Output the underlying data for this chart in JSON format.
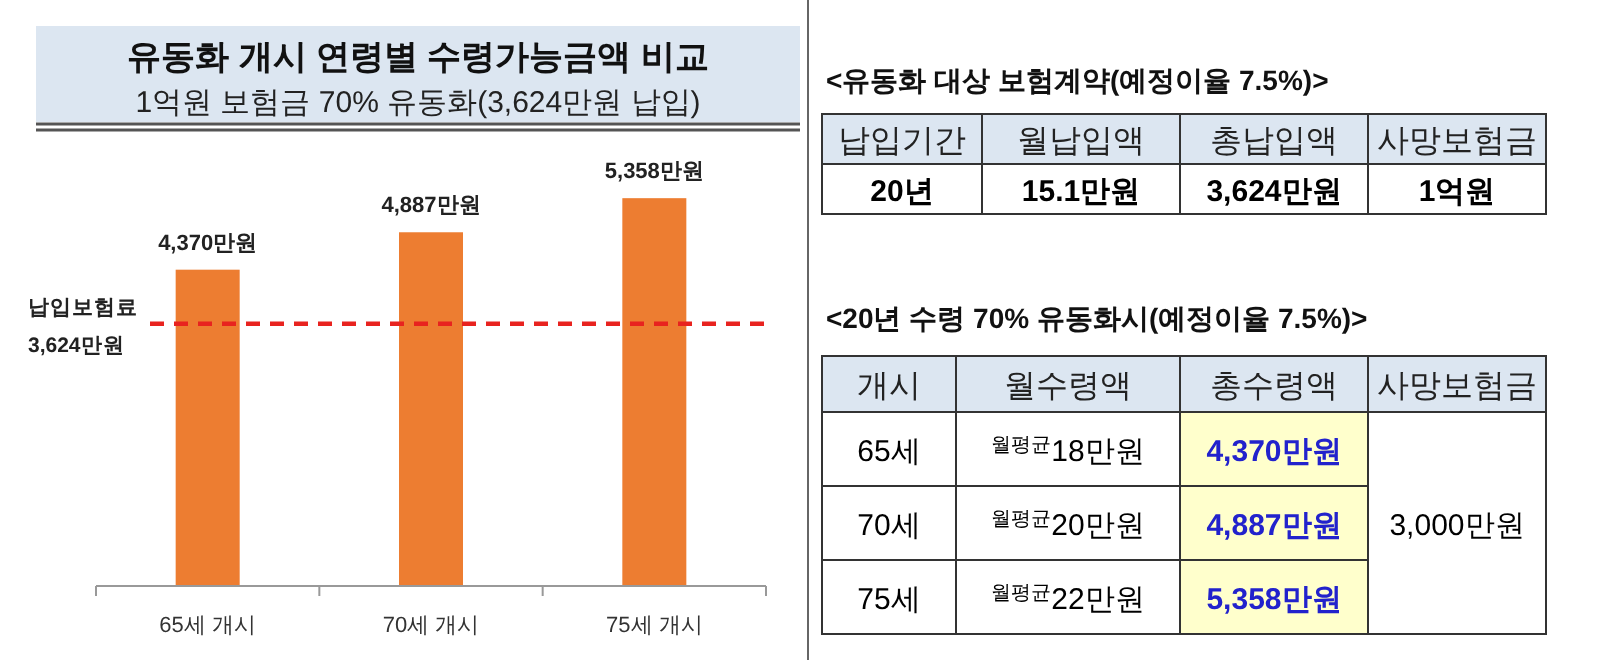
{
  "chart_data": [
    {
      "type": "bar",
      "title": "유동화 개시 연령별 수령가능금액 비교",
      "subtitle": "1억원 보험금 70% 유동화(3,624만원 납입)",
      "categories": [
        "65세 개시",
        "70세 개시",
        "75세 개시"
      ],
      "values": [
        4370,
        4887,
        5358
      ],
      "value_labels": [
        "4,370만원",
        "4,887만원",
        "5,358만원"
      ],
      "color": "#ed7d31",
      "ref_lines": [
        {
          "axis": "y",
          "value": 3624,
          "label": "납입보험료\n3,624만원",
          "color": "#e8231f",
          "line_style": "dashed"
        }
      ]
    },
    {
      "type": "other",
      "title": "<유동화 대상 보험계약(예정이율 7.5%)>",
      "categories": [
        "납입기간",
        "월납입액",
        "총납입액",
        "사망보험금"
      ],
      "annotations": [
        "20년",
        "15.1만원",
        "3,624만원",
        "1억원"
      ]
    },
    {
      "type": "other",
      "title": "<20년 수령 70% 유동화시(예정이율 7.5%)>",
      "categories": [
        "개시",
        "월수령액",
        "총수령액",
        "사망보험금"
      ],
      "annotations": [
        "65세",
        "$^{월평균}$18만원",
        "4,370만원",
        "3,000만원",
        "70세",
        "$^{월평균}$20만원",
        "4,887만원",
        "75세",
        "$^{월평균}$22만원",
        "5,358만원"
      ],
      "colors": [
        "#dce6f1",
        "#dce6f1",
        "#dce6f1",
        "#dce6f1",
        "#ffffff",
        "#ffffff",
        "#ffffcc",
        "#ffffff",
        "#ffffff",
        "#ffffff",
        "#ffffcc",
        "#ffffff",
        "#ffffff",
        "#ffffcc"
      ]
    }
  ]
}
